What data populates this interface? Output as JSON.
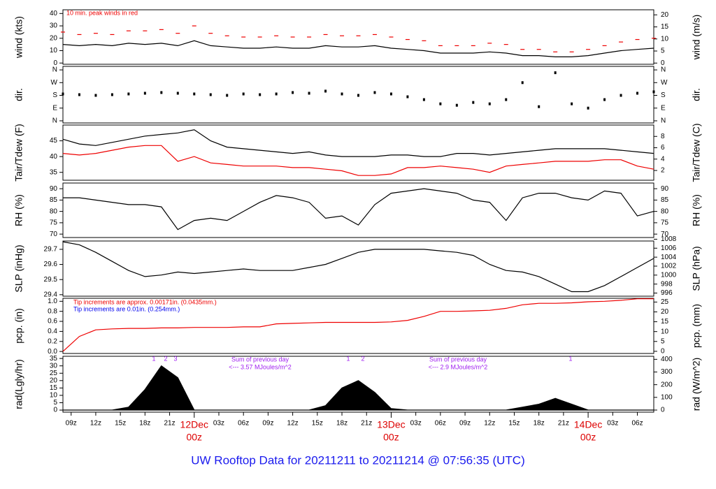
{
  "title": "UW Rooftop Data for 20211211  to  20211214 @ 07:56:35  (UTC)",
  "chart_data": [
    {
      "type": "line",
      "ylabel": "wind (kts)",
      "y2label": "wind (m/s)",
      "xlim": [
        8,
        80
      ],
      "ylim": [
        -1,
        43
      ],
      "yticks": [
        0,
        10,
        20,
        30,
        40
      ],
      "y2lim": [
        -0.5,
        22.1
      ],
      "y2ticks": [
        0,
        5,
        10,
        15,
        20
      ],
      "annotations": [
        {
          "text": "10 min. peak winds in red",
          "color": "#ee0000"
        }
      ],
      "x": [
        8,
        10,
        12,
        14,
        16,
        18,
        20,
        22,
        24,
        26,
        28,
        30,
        32,
        34,
        36,
        38,
        40,
        42,
        44,
        46,
        48,
        50,
        52,
        54,
        56,
        58,
        60,
        62,
        64,
        66,
        68,
        70,
        72,
        74,
        76,
        78,
        80
      ],
      "series": [
        {
          "mark": "line",
          "color": "#000000",
          "values": [
            15,
            14,
            15,
            14,
            16,
            15,
            16,
            14,
            18,
            14,
            13,
            12,
            12,
            13,
            12,
            12,
            14,
            13,
            13,
            14,
            12,
            11,
            10,
            8,
            8,
            8,
            9,
            8,
            6,
            6,
            5,
            5,
            6,
            8,
            10,
            11,
            12
          ]
        },
        {
          "mark": "dash",
          "color": "#ee0000",
          "values": [
            25,
            23,
            24,
            23,
            26,
            26,
            27,
            24,
            30,
            24,
            22,
            21,
            21,
            22,
            21,
            21,
            23,
            22,
            22,
            23,
            21,
            19,
            18,
            14,
            14,
            14,
            16,
            15,
            11,
            11,
            9,
            9,
            11,
            14,
            17,
            19,
            20
          ]
        }
      ]
    },
    {
      "type": "line",
      "ylabel": "dir.",
      "y2label": "dir.",
      "xlim": [
        8,
        80
      ],
      "ylim": [
        -15,
        385
      ],
      "yticks": [
        {
          "value": 0,
          "label": "N"
        },
        {
          "value": 90,
          "label": "E"
        },
        {
          "value": 180,
          "label": "S"
        },
        {
          "value": 270,
          "label": "W"
        },
        {
          "value": 360,
          "label": "N"
        }
      ],
      "x": [
        8,
        10,
        12,
        14,
        16,
        18,
        20,
        22,
        24,
        26,
        28,
        30,
        32,
        34,
        36,
        38,
        40,
        42,
        44,
        46,
        48,
        50,
        52,
        54,
        56,
        58,
        60,
        62,
        64,
        66,
        68,
        70,
        72,
        74,
        76,
        78,
        80
      ],
      "series": [
        {
          "mark": "dot",
          "color": "#000000",
          "values": [
            190,
            185,
            180,
            185,
            190,
            195,
            200,
            195,
            190,
            185,
            180,
            190,
            185,
            190,
            200,
            195,
            210,
            190,
            180,
            200,
            190,
            170,
            150,
            120,
            110,
            130,
            120,
            150,
            270,
            100,
            340,
            120,
            90,
            150,
            180,
            195,
            205
          ]
        }
      ]
    },
    {
      "type": "line",
      "ylabel": "Tair/Tdew (F)",
      "y2label": "Tair/Tdew (C)",
      "xlim": [
        8,
        80
      ],
      "ylim": [
        32.5,
        50
      ],
      "yticks": [
        35,
        40,
        45
      ],
      "y2lim": [
        0.28,
        10
      ],
      "y2ticks": [
        2,
        4,
        6,
        8
      ],
      "x": [
        8,
        10,
        12,
        14,
        16,
        18,
        20,
        22,
        24,
        26,
        28,
        30,
        32,
        34,
        36,
        38,
        40,
        42,
        44,
        46,
        48,
        50,
        52,
        54,
        56,
        58,
        60,
        62,
        64,
        66,
        68,
        70,
        72,
        74,
        76,
        78,
        80
      ],
      "series": [
        {
          "mark": "line",
          "color": "#000000",
          "values": [
            45.5,
            44,
            43.5,
            44.5,
            45.5,
            46.5,
            47,
            47.5,
            48.5,
            45,
            43,
            42.5,
            42,
            41.5,
            41,
            41.5,
            40.5,
            40,
            40,
            40,
            40.5,
            40.5,
            40,
            40,
            41,
            41,
            40.5,
            41,
            41.5,
            42,
            42.5,
            42.5,
            42.5,
            42.5,
            42,
            41.5,
            41
          ]
        },
        {
          "mark": "line",
          "color": "#ee0000",
          "values": [
            41,
            40.5,
            41,
            42,
            43,
            43.5,
            43.5,
            38.5,
            40,
            38,
            37.5,
            37,
            37,
            37,
            36.5,
            36.5,
            36,
            35.5,
            34,
            34,
            34.5,
            36.5,
            36.5,
            37,
            36.5,
            36,
            35,
            37,
            37.5,
            38,
            38.5,
            38.5,
            38.5,
            39,
            39,
            37,
            36
          ]
        }
      ]
    },
    {
      "type": "line",
      "ylabel": "RH (%)",
      "y2label": "RH (%)",
      "xlim": [
        8,
        80
      ],
      "ylim": [
        68.5,
        92.5
      ],
      "yticks": [
        70,
        75,
        80,
        85,
        90
      ],
      "x": [
        8,
        10,
        12,
        14,
        16,
        18,
        20,
        22,
        24,
        26,
        28,
        30,
        32,
        34,
        36,
        38,
        40,
        42,
        44,
        46,
        48,
        50,
        52,
        54,
        56,
        58,
        60,
        62,
        64,
        66,
        68,
        70,
        72,
        74,
        76,
        78,
        80
      ],
      "series": [
        {
          "mark": "line",
          "color": "#000000",
          "values": [
            86,
            86,
            85,
            84,
            83,
            83,
            82,
            72,
            76,
            77,
            76,
            80,
            84,
            87,
            86,
            84,
            77,
            78,
            74,
            83,
            88,
            89,
            90,
            89,
            88,
            85,
            84,
            76,
            86,
            88,
            88,
            86,
            85,
            89,
            88,
            78,
            80
          ]
        }
      ]
    },
    {
      "type": "line",
      "ylabel": "SLP (inHg)",
      "y2label": "SLP (hPa)",
      "xlim": [
        8,
        80
      ],
      "ylim": [
        29.39,
        29.755
      ],
      "yticks": [
        29.4,
        29.5,
        29.6,
        29.7
      ],
      "y2lim": [
        995.3,
        1007.6
      ],
      "y2ticks": [
        996,
        998,
        1000,
        1002,
        1004,
        1006,
        1008
      ],
      "x": [
        8,
        10,
        12,
        14,
        16,
        18,
        20,
        22,
        24,
        26,
        28,
        30,
        32,
        34,
        36,
        38,
        40,
        42,
        44,
        46,
        48,
        50,
        52,
        54,
        56,
        58,
        60,
        62,
        64,
        66,
        68,
        70,
        72,
        74,
        76,
        78,
        80
      ],
      "series": [
        {
          "mark": "line",
          "color": "#000000",
          "values": [
            29.75,
            29.73,
            29.68,
            29.62,
            29.56,
            29.52,
            29.53,
            29.55,
            29.54,
            29.55,
            29.56,
            29.57,
            29.56,
            29.56,
            29.56,
            29.58,
            29.6,
            29.64,
            29.68,
            29.7,
            29.7,
            29.7,
            29.7,
            29.69,
            29.68,
            29.66,
            29.6,
            29.56,
            29.55,
            29.52,
            29.47,
            29.42,
            29.42,
            29.46,
            29.52,
            29.58,
            29.64
          ]
        }
      ]
    },
    {
      "type": "line",
      "ylabel": "pcp. (in)",
      "y2label": "pcp. (mm)",
      "xlim": [
        8,
        80
      ],
      "ylim": [
        -0.04,
        1.06
      ],
      "yticks": [
        {
          "value": 0,
          "label": "0.0"
        },
        0.2,
        0.4,
        0.6,
        0.8,
        {
          "value": 1,
          "label": "1.0"
        }
      ],
      "y2lim": [
        -1.1,
        26.9
      ],
      "y2ticks": [
        0,
        5,
        10,
        15,
        20,
        25
      ],
      "annotations": [
        {
          "text": "Tip increments are approx. 0.00171in. (0.0435mm.)",
          "color": "#ee0000"
        },
        {
          "text": "Tip increments are 0.01in. (0.254mm.)",
          "color": "#0000ee"
        }
      ],
      "x": [
        8,
        10,
        12,
        14,
        16,
        18,
        20,
        22,
        24,
        26,
        28,
        30,
        32,
        34,
        36,
        38,
        40,
        42,
        44,
        46,
        48,
        50,
        52,
        54,
        56,
        58,
        60,
        62,
        64,
        66,
        68,
        70,
        72,
        74,
        76,
        78,
        80
      ],
      "series": [
        {
          "mark": "line",
          "color": "#ee0000",
          "values": [
            0,
            0.3,
            0.43,
            0.45,
            0.46,
            0.46,
            0.47,
            0.47,
            0.48,
            0.48,
            0.48,
            0.49,
            0.49,
            0.55,
            0.56,
            0.57,
            0.58,
            0.58,
            0.58,
            0.58,
            0.59,
            0.62,
            0.7,
            0.8,
            0.8,
            0.81,
            0.82,
            0.86,
            0.93,
            0.96,
            0.96,
            0.97,
            0.99,
            1.0,
            1.02,
            1.05,
            1.05
          ]
        }
      ]
    },
    {
      "type": "line",
      "ylabel": "rad(Lgly/hr)",
      "y2label": "rad (W/m^2)",
      "xlim": [
        8,
        80
      ],
      "ylim": [
        -1.4,
        36.5
      ],
      "yticks": [
        0,
        5,
        10,
        15,
        20,
        25,
        30,
        35
      ],
      "y2lim": [
        -16.6,
        424
      ],
      "y2ticks": [
        0,
        100,
        200,
        300,
        400
      ],
      "xticks": [
        {
          "value": 9,
          "label": "09z"
        },
        {
          "value": 12,
          "label": "12z"
        },
        {
          "value": 15,
          "label": "15z"
        },
        {
          "value": 18,
          "label": "18z"
        },
        {
          "value": 21,
          "label": "21z"
        },
        {
          "value": 27,
          "label": "03z"
        },
        {
          "value": 30,
          "label": "06z"
        },
        {
          "value": 33,
          "label": "09z"
        },
        {
          "value": 36,
          "label": "12z"
        },
        {
          "value": 39,
          "label": "15z"
        },
        {
          "value": 42,
          "label": "18z"
        },
        {
          "value": 45,
          "label": "21z"
        },
        {
          "value": 51,
          "label": "03z"
        },
        {
          "value": 54,
          "label": "06z"
        },
        {
          "value": 57,
          "label": "09z"
        },
        {
          "value": 60,
          "label": "12z"
        },
        {
          "value": 63,
          "label": "15z"
        },
        {
          "value": 66,
          "label": "18z"
        },
        {
          "value": 69,
          "label": "21z"
        },
        {
          "value": 75,
          "label": "03z"
        },
        {
          "value": 78,
          "label": "06z"
        }
      ],
      "date_ticks": [
        {
          "value": 24,
          "label": "12Dec",
          "hour": "00z"
        },
        {
          "value": 48,
          "label": "13Dec",
          "hour": "00z"
        },
        {
          "value": 72,
          "label": "14Dec",
          "hour": "00z"
        }
      ],
      "annotations": [
        {
          "text": "Sum of previous day",
          "color": "#a020f0"
        },
        {
          "text": "<--- 3.57 MJoules/m^2",
          "color": "#a020f0"
        },
        {
          "text": "Sum of previous day",
          "color": "#a020f0"
        },
        {
          "text": "<--- 2.9 MJoules/m^2",
          "color": "#a020f0"
        },
        {
          "text": "1",
          "color": "#a020f0"
        },
        {
          "text": "2",
          "color": "#a020f0"
        },
        {
          "text": "3",
          "color": "#a020f0"
        },
        {
          "text": "1",
          "color": "#a020f0"
        },
        {
          "text": "2",
          "color": "#a020f0"
        },
        {
          "text": "1",
          "color": "#a020f0"
        }
      ],
      "x": [
        8,
        10,
        12,
        14,
        16,
        18,
        20,
        22,
        24,
        26,
        28,
        30,
        32,
        34,
        36,
        38,
        40,
        42,
        44,
        46,
        48,
        50,
        52,
        54,
        56,
        58,
        60,
        62,
        64,
        66,
        68,
        70,
        72,
        74,
        76,
        78,
        80
      ],
      "series": [
        {
          "mark": "area",
          "color": "#000000",
          "values": [
            0,
            0,
            0,
            0,
            2,
            14,
            30,
            22,
            0,
            0,
            0,
            0,
            0,
            0,
            0,
            0,
            3,
            15,
            20,
            12,
            1,
            0,
            0,
            0,
            0,
            0,
            0,
            0,
            2,
            4,
            8,
            4,
            0,
            0,
            0,
            0,
            0
          ]
        }
      ]
    }
  ]
}
